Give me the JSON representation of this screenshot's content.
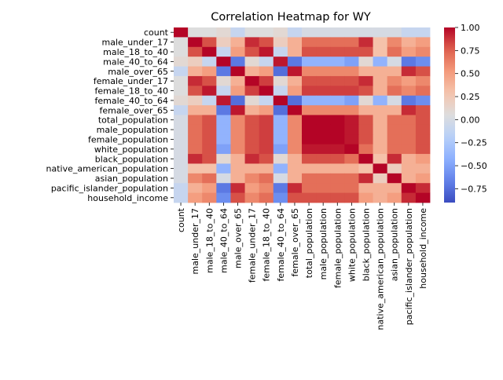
{
  "chart_data": {
    "type": "heatmap",
    "title": "Correlation Heatmap for WY",
    "xlabel": "",
    "ylabel": "",
    "labels": [
      "count",
      "male_under_17",
      "male_18_to_40",
      "male_40_to_64",
      "male_over_65",
      "female_under_17",
      "female_18_to_40",
      "female_40_to_64",
      "female_over_65",
      "total_population",
      "male_population",
      "female_population",
      "white_population",
      "black_population",
      "native_american_population",
      "asian_population",
      "pacific_islander_population",
      "household_income"
    ],
    "colormap": "coolwarm",
    "vmin": -0.9,
    "vmax": 1.0,
    "colorbar_ticks": [
      1.0,
      0.75,
      0.5,
      0.25,
      0.0,
      -0.25,
      -0.5,
      -0.75
    ],
    "colorbar_tick_labels": [
      "1.00",
      "0.75",
      "0.50",
      "0.25",
      "0.00",
      "−0.25",
      "−0.50",
      "−0.75"
    ],
    "matrix": [
      [
        1.0,
        0.05,
        0.05,
        0.1,
        -0.1,
        0.05,
        0.05,
        0.1,
        -0.1,
        0.0,
        0.0,
        0.0,
        0.0,
        0.0,
        0.0,
        0.0,
        -0.1,
        -0.1
      ],
      [
        0.05,
        1.0,
        0.8,
        0.2,
        0.4,
        0.9,
        0.8,
        0.2,
        0.4,
        0.7,
        0.7,
        0.7,
        0.7,
        0.9,
        0.3,
        0.6,
        0.4,
        0.5
      ],
      [
        0.05,
        0.8,
        1.0,
        -0.1,
        0.5,
        0.8,
        0.95,
        -0.1,
        0.4,
        0.8,
        0.8,
        0.8,
        0.8,
        0.8,
        0.3,
        0.7,
        0.5,
        0.6
      ],
      [
        0.1,
        0.2,
        -0.1,
        1.0,
        -0.7,
        0.1,
        -0.1,
        0.95,
        -0.7,
        -0.4,
        -0.4,
        -0.4,
        -0.5,
        0.1,
        -0.4,
        0.0,
        -0.7,
        -0.6
      ],
      [
        -0.1,
        0.4,
        0.5,
        -0.7,
        1.0,
        0.4,
        0.5,
        -0.75,
        0.95,
        0.6,
        0.6,
        0.6,
        0.6,
        0.4,
        0.4,
        0.4,
        0.9,
        0.8
      ],
      [
        0.05,
        0.9,
        0.8,
        0.1,
        0.4,
        1.0,
        0.85,
        0.1,
        0.4,
        0.8,
        0.8,
        0.8,
        0.8,
        0.9,
        0.4,
        0.6,
        0.5,
        0.6
      ],
      [
        0.05,
        0.8,
        0.95,
        -0.1,
        0.5,
        0.85,
        1.0,
        -0.1,
        0.5,
        0.85,
        0.85,
        0.85,
        0.85,
        0.8,
        0.4,
        0.7,
        0.6,
        0.7
      ],
      [
        0.1,
        0.2,
        -0.1,
        0.95,
        -0.75,
        0.1,
        -0.1,
        1.0,
        -0.75,
        -0.4,
        -0.4,
        -0.4,
        -0.5,
        0.1,
        -0.4,
        0.0,
        -0.7,
        -0.6
      ],
      [
        -0.1,
        0.4,
        0.4,
        -0.7,
        0.95,
        0.4,
        0.5,
        -0.75,
        1.0,
        0.6,
        0.6,
        0.6,
        0.6,
        0.4,
        0.4,
        0.4,
        0.9,
        0.8
      ],
      [
        0.0,
        0.7,
        0.8,
        -0.4,
        0.6,
        0.8,
        0.85,
        -0.4,
        0.6,
        1.0,
        1.0,
        1.0,
        0.95,
        0.8,
        0.4,
        0.7,
        0.7,
        0.8
      ],
      [
        0.0,
        0.7,
        0.8,
        -0.4,
        0.6,
        0.8,
        0.85,
        -0.4,
        0.6,
        1.0,
        1.0,
        1.0,
        0.95,
        0.8,
        0.4,
        0.7,
        0.7,
        0.8
      ],
      [
        0.0,
        0.7,
        0.8,
        -0.4,
        0.6,
        0.8,
        0.85,
        -0.4,
        0.6,
        1.0,
        1.0,
        1.0,
        0.95,
        0.8,
        0.4,
        0.7,
        0.7,
        0.8
      ],
      [
        0.0,
        0.7,
        0.8,
        -0.5,
        0.6,
        0.8,
        0.85,
        -0.5,
        0.6,
        0.95,
        0.95,
        0.95,
        1.0,
        0.7,
        0.4,
        0.7,
        0.7,
        0.8
      ],
      [
        0.0,
        0.9,
        0.8,
        0.1,
        0.4,
        0.9,
        0.8,
        0.1,
        0.4,
        0.8,
        0.8,
        0.8,
        0.7,
        1.0,
        0.3,
        0.9,
        0.4,
        0.5
      ],
      [
        0.0,
        0.3,
        0.3,
        -0.4,
        0.4,
        0.4,
        0.4,
        -0.4,
        0.4,
        0.4,
        0.4,
        0.4,
        0.4,
        0.3,
        1.0,
        0.2,
        0.4,
        0.4
      ],
      [
        0.0,
        0.6,
        0.7,
        0.0,
        0.4,
        0.6,
        0.7,
        0.0,
        0.4,
        0.7,
        0.7,
        0.7,
        0.7,
        0.9,
        0.2,
        1.0,
        0.4,
        0.5
      ],
      [
        -0.1,
        0.4,
        0.5,
        -0.7,
        0.9,
        0.5,
        0.6,
        -0.7,
        0.9,
        0.7,
        0.7,
        0.7,
        0.7,
        0.4,
        0.4,
        0.4,
        1.0,
        0.9
      ],
      [
        -0.1,
        0.5,
        0.6,
        -0.6,
        0.8,
        0.6,
        0.7,
        -0.6,
        0.8,
        0.8,
        0.8,
        0.8,
        0.8,
        0.5,
        0.4,
        0.5,
        0.9,
        1.0
      ]
    ]
  }
}
